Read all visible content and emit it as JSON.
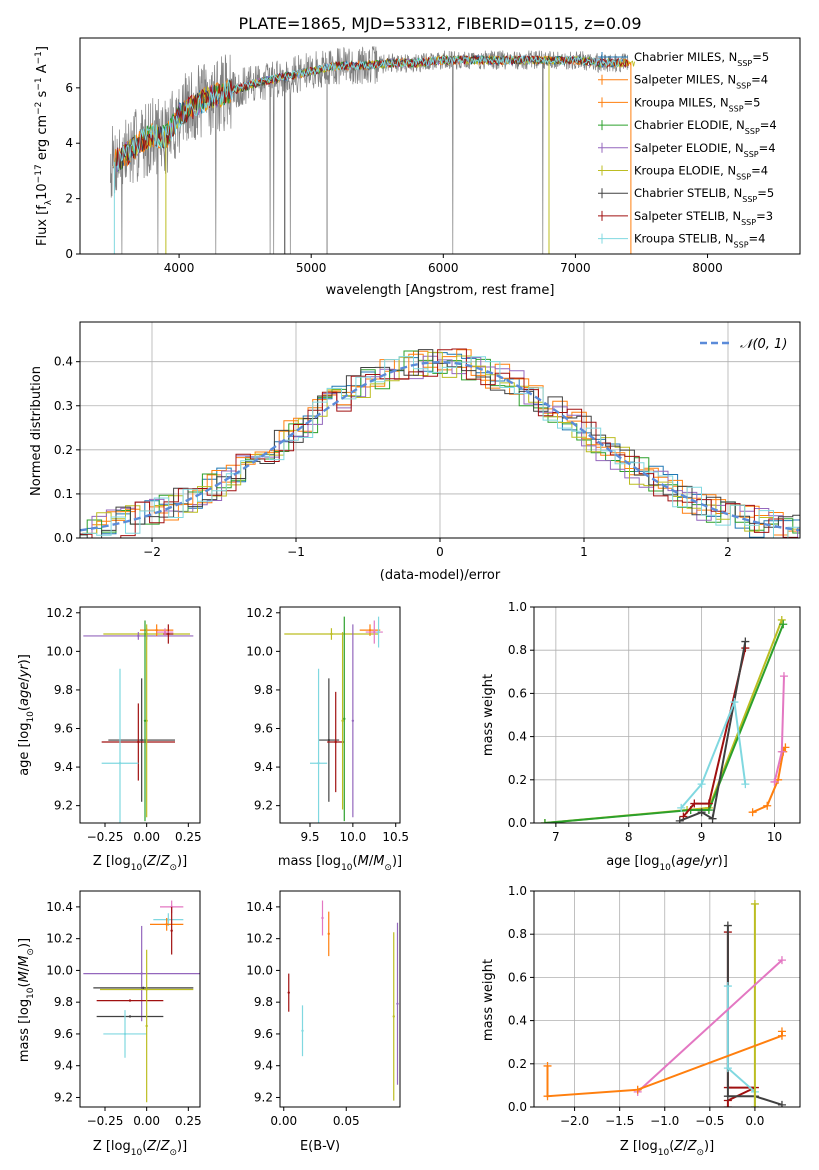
{
  "figure_title": "PLATE=1865, MJD=53312, FIBERID=0115, z=0.09",
  "model_colors": {
    "Chabrier MILES": "#1f77b4",
    "Salpeter MILES": "#ff7f0e",
    "Kroupa MILES": "#ff7f0e",
    "Chabrier ELODIE": "#2ca02c",
    "Salpeter ELODIE": "#9467bd",
    "Kroupa ELODIE": "#bcbd22",
    "Chabrier STELIB": "#404040",
    "Salpeter STELIB": "#a01010",
    "Kroupa STELIB": "#80d8e0",
    "pink": "#e377c2",
    "data": "#808080"
  },
  "chart_data": [
    {
      "id": "spectrum",
      "type": "line",
      "xlabel": "wavelength [Angstrom, rest frame]",
      "ylabel": "Flux [f_λ 10^-17 erg cm^-2 s^-1 A^-1]",
      "xlim": [
        3250,
        8700
      ],
      "ylim": [
        0,
        7.8
      ],
      "xticks": [
        4000,
        5000,
        6000,
        7000,
        8000
      ],
      "yticks": [
        0,
        2,
        4,
        6
      ],
      "legend_position": "top-right",
      "legend": [
        {
          "name": "Chabrier MILES",
          "nssp": "5"
        },
        {
          "name": "Salpeter MILES",
          "nssp": "4"
        },
        {
          "name": "Kroupa MILES",
          "nssp": "5"
        },
        {
          "name": "Chabrier ELODIE",
          "nssp": "4"
        },
        {
          "name": "Salpeter ELODIE",
          "nssp": "4"
        },
        {
          "name": "Kroupa ELODIE",
          "nssp": "4"
        },
        {
          "name": "Chabrier STELIB",
          "nssp": "5"
        },
        {
          "name": "Salpeter STELIB",
          "nssp": "3"
        },
        {
          "name": "Kroupa STELIB",
          "nssp": "4"
        }
      ],
      "continuum_x": [
        3500,
        3600,
        3700,
        3800,
        3900,
        4000,
        4200,
        4400,
        4600,
        4800,
        5000,
        5200,
        5400,
        5600,
        5800,
        6000,
        6200,
        6400,
        6600,
        6800,
        7000,
        7200,
        7400
      ],
      "continuum_y": [
        3.3,
        3.6,
        4.0,
        4.3,
        4.2,
        5.0,
        5.6,
        5.9,
        6.2,
        6.4,
        6.6,
        6.8,
        6.8,
        6.9,
        6.9,
        7.0,
        7.0,
        7.0,
        7.0,
        7.0,
        7.0,
        6.9,
        6.9
      ]
    },
    {
      "id": "residuals",
      "type": "line",
      "xlabel": "(data-model)/error",
      "ylabel": "Normed distribution",
      "xlim": [
        -2.5,
        2.5
      ],
      "ylim": [
        0,
        0.49
      ],
      "xticks": [
        -2,
        -1,
        0,
        1,
        2
      ],
      "yticks": [
        0.0,
        0.1,
        0.2,
        0.3,
        0.4
      ],
      "legend_position": "top-right",
      "legend_label": "N(0,1)",
      "grid": true,
      "gaussian": {
        "mu": 0,
        "sigma": 1
      }
    },
    {
      "id": "z_age",
      "type": "scatter",
      "xlabel": "Z [log10(Z/Z⊙)]",
      "ylabel": "age [log10(age/yr)]",
      "xlim": [
        -0.4,
        0.32
      ],
      "ylim": [
        9.11,
        10.23
      ],
      "xticks": [
        -0.25,
        0.0,
        0.25
      ],
      "yticks": [
        9.2,
        9.4,
        9.6,
        9.8,
        10.0,
        10.2
      ],
      "points": [
        {
          "x": 0.0,
          "y": 10.09,
          "xerr": 0.26,
          "yerr": 0.03,
          "color": "Kroupa ELODIE"
        },
        {
          "x": -0.05,
          "y": 10.08,
          "xerr": 0.33,
          "yerr": 0.02,
          "color": "Salpeter ELODIE"
        },
        {
          "x": 0.06,
          "y": 10.11,
          "xerr": 0.1,
          "yerr": 0.03,
          "color": "Salpeter MILES"
        },
        {
          "x": 0.13,
          "y": 10.09,
          "xerr": 0.03,
          "yerr": 0.05,
          "color": "Salpeter STELIB"
        },
        {
          "x": 0.11,
          "y": 10.1,
          "xerr": 0.05,
          "yerr": 0.02,
          "color": "pink"
        },
        {
          "x": -0.03,
          "y": 9.54,
          "xerr": 0.2,
          "yerr": 0.32,
          "color": "Chabrier STELIB"
        },
        {
          "x": -0.05,
          "y": 9.53,
          "xerr": 0.22,
          "yerr": 0.2,
          "color": "Salpeter STELIB"
        },
        {
          "x": -0.16,
          "y": 9.42,
          "xerr": 0.11,
          "yerr": 0.49,
          "color": "Kroupa STELIB"
        },
        {
          "x": 0.0,
          "y": 9.64,
          "xerr": 0.0,
          "yerr": 0.5,
          "color": "Kroupa ELODIE"
        },
        {
          "x": -0.01,
          "y": 9.64,
          "xerr": 0.0,
          "yerr": 0.52,
          "color": "Chabrier ELODIE"
        }
      ]
    },
    {
      "id": "mass_age",
      "type": "scatter",
      "xlabel": "mass [log10(M/M⊙)]",
      "ylabel": "",
      "xlim": [
        9.15,
        10.55
      ],
      "ylim": [
        9.11,
        10.23
      ],
      "xticks": [
        9.5,
        10.0,
        10.5
      ],
      "yticks": [
        9.2,
        9.4,
        9.6,
        9.8,
        10.0,
        10.2
      ],
      "points": [
        {
          "x": 9.75,
          "y": 10.09,
          "xerr": 0.55,
          "yerr": 0.03,
          "color": "Kroupa ELODIE"
        },
        {
          "x": 10.2,
          "y": 10.11,
          "xerr": 0.12,
          "yerr": 0.03,
          "color": "Salpeter MILES"
        },
        {
          "x": 10.25,
          "y": 10.1,
          "xerr": 0.1,
          "yerr": 0.06,
          "color": "pink"
        },
        {
          "x": 10.3,
          "y": 10.1,
          "xerr": 0.02,
          "yerr": 0.08,
          "color": "Kroupa STELIB"
        },
        {
          "x": 9.72,
          "y": 9.54,
          "xerr": 0.12,
          "yerr": 0.32,
          "color": "Chabrier STELIB"
        },
        {
          "x": 9.8,
          "y": 9.53,
          "xerr": 0.1,
          "yerr": 0.26,
          "color": "Salpeter STELIB"
        },
        {
          "x": 9.6,
          "y": 9.42,
          "xerr": 0.1,
          "yerr": 0.49,
          "color": "Kroupa STELIB"
        },
        {
          "x": 9.9,
          "y": 9.65,
          "xerr": 0.0,
          "yerr": 0.53,
          "color": "Chabrier ELODIE"
        },
        {
          "x": 10.0,
          "y": 9.64,
          "xerr": 0.0,
          "yerr": 0.5,
          "color": "Salpeter ELODIE"
        },
        {
          "x": 9.88,
          "y": 9.64,
          "xerr": 0.0,
          "yerr": 0.46,
          "color": "Kroupa ELODIE"
        }
      ]
    },
    {
      "id": "age_weight",
      "type": "line",
      "xlabel": "age [log10(age/yr)]",
      "ylabel": "mass weight",
      "xlim": [
        6.7,
        10.35
      ],
      "ylim": [
        0,
        1.0
      ],
      "xticks": [
        7,
        8,
        9,
        10
      ],
      "yticks": [
        0.0,
        0.2,
        0.4,
        0.6,
        0.8,
        1.0
      ],
      "grid": true,
      "series": [
        {
          "color": "Kroupa ELODIE",
          "x": [
            6.85,
            8.8,
            9.1,
            10.1
          ],
          "y": [
            0.0,
            0.06,
            0.07,
            0.94
          ]
        },
        {
          "color": "Chabrier ELODIE",
          "x": [
            6.85,
            8.85,
            9.1,
            10.12
          ],
          "y": [
            0.0,
            0.06,
            0.06,
            0.92
          ]
        },
        {
          "color": "Salpeter STELIB",
          "x": [
            8.75,
            8.9,
            9.1,
            9.6
          ],
          "y": [
            0.03,
            0.09,
            0.09,
            0.81
          ]
        },
        {
          "color": "Chabrier STELIB",
          "x": [
            8.7,
            9.0,
            9.15,
            9.6
          ],
          "y": [
            0.01,
            0.05,
            0.02,
            0.84
          ]
        },
        {
          "color": "Kroupa STELIB",
          "x": [
            8.72,
            9.0,
            9.45,
            9.6
          ],
          "y": [
            0.07,
            0.18,
            0.56,
            0.18
          ]
        },
        {
          "color": "Salpeter MILES",
          "x": [
            9.7,
            9.9,
            10.05,
            10.12,
            10.15
          ],
          "y": [
            0.05,
            0.08,
            0.2,
            0.33,
            0.35
          ]
        },
        {
          "color": "pink",
          "x": [
            10.0,
            10.1,
            10.13
          ],
          "y": [
            0.19,
            0.33,
            0.68
          ]
        }
      ]
    },
    {
      "id": "z_mass",
      "type": "scatter",
      "xlabel": "Z [log10(Z/Z⊙)]",
      "ylabel": "mass [log10(M/M⊙)]",
      "xlim": [
        -0.4,
        0.32
      ],
      "ylim": [
        9.14,
        10.5
      ],
      "xticks": [
        -0.25,
        0.0,
        0.25
      ],
      "yticks": [
        9.2,
        9.4,
        9.6,
        9.8,
        10.0,
        10.2,
        10.4
      ],
      "points": [
        {
          "x": -0.03,
          "y": 9.98,
          "xerr": 0.35,
          "yerr": 0.3,
          "color": "Salpeter ELODIE"
        },
        {
          "x": 0.0,
          "y": 9.88,
          "xerr": 0.28,
          "yerr": 0.0,
          "color": "Kroupa ELODIE"
        },
        {
          "x": -0.02,
          "y": 9.89,
          "xerr": 0.3,
          "yerr": 0.0,
          "color": "Chabrier STELIB"
        },
        {
          "x": -0.1,
          "y": 9.81,
          "xerr": 0.2,
          "yerr": 0.0,
          "color": "Salpeter STELIB"
        },
        {
          "x": -0.1,
          "y": 9.71,
          "xerr": 0.2,
          "yerr": 0.0,
          "color": "Chabrier STELIB"
        },
        {
          "x": -0.13,
          "y": 9.6,
          "xerr": 0.13,
          "yerr": 0.15,
          "color": "Kroupa STELIB"
        },
        {
          "x": 0.0,
          "y": 9.65,
          "xerr": 0.0,
          "yerr": 0.48,
          "color": "Kroupa ELODIE"
        },
        {
          "x": 0.15,
          "y": 10.4,
          "xerr": 0.07,
          "yerr": 0.04,
          "color": "pink"
        },
        {
          "x": 0.13,
          "y": 10.32,
          "xerr": 0.09,
          "yerr": 0.04,
          "color": "Kroupa STELIB"
        },
        {
          "x": 0.12,
          "y": 10.29,
          "xerr": 0.1,
          "yerr": 0.04,
          "color": "Salpeter MILES"
        },
        {
          "x": 0.15,
          "y": 10.25,
          "xerr": 0.0,
          "yerr": 0.15,
          "color": "Salpeter STELIB"
        }
      ]
    },
    {
      "id": "ebv_mass",
      "type": "scatter",
      "xlabel": "E(B-V)",
      "ylabel": "",
      "xlim": [
        -0.003,
        0.093
      ],
      "ylim": [
        9.14,
        10.5
      ],
      "xticks": [
        0.0,
        0.05
      ],
      "yticks": [
        9.2,
        9.4,
        9.6,
        9.8,
        10.0,
        10.2,
        10.4
      ],
      "points": [
        {
          "x": 0.031,
          "y": 10.33,
          "xerr": 0.0,
          "yerr": 0.11,
          "color": "pink"
        },
        {
          "x": 0.036,
          "y": 10.23,
          "xerr": 0.0,
          "yerr": 0.14,
          "color": "Salpeter MILES"
        },
        {
          "x": 0.004,
          "y": 9.86,
          "xerr": 0.0,
          "yerr": 0.12,
          "color": "Salpeter STELIB"
        },
        {
          "x": 0.015,
          "y": 9.62,
          "xerr": 0.0,
          "yerr": 0.16,
          "color": "Kroupa STELIB"
        },
        {
          "x": 0.088,
          "y": 9.71,
          "xerr": 0.0,
          "yerr": 0.53,
          "color": "Kroupa ELODIE"
        },
        {
          "x": 0.091,
          "y": 9.79,
          "xerr": 0.0,
          "yerr": 0.51,
          "color": "Salpeter ELODIE"
        }
      ]
    },
    {
      "id": "z_weight",
      "type": "line",
      "xlabel": "Z [log10(Z/Z⊙)]",
      "ylabel": "mass weight",
      "xlim": [
        -2.45,
        0.5
      ],
      "ylim": [
        0,
        1.0
      ],
      "xticks": [
        -2.0,
        -1.5,
        -1.0,
        -0.5,
        0.0
      ],
      "yticks": [
        0.0,
        0.2,
        0.4,
        0.6,
        0.8,
        1.0
      ],
      "grid": true,
      "series": [
        {
          "color": "Salpeter STELIB",
          "x": [
            -0.3,
            -0.3,
            0.0,
            -0.3,
            -0.3
          ],
          "y": [
            0.81,
            0.09,
            0.09,
            0.03,
            0.0
          ]
        },
        {
          "color": "Chabrier STELIB",
          "x": [
            -0.3,
            -0.3,
            0.0,
            0.3
          ],
          "y": [
            0.84,
            0.05,
            0.05,
            0.01
          ]
        },
        {
          "color": "Kroupa STELIB",
          "x": [
            -0.3,
            -0.3,
            0.0,
            0.0
          ],
          "y": [
            0.56,
            0.18,
            0.07,
            0.0
          ]
        },
        {
          "color": "Kroupa ELODIE",
          "x": [
            0.0,
            0.0
          ],
          "y": [
            0.94,
            0.0
          ]
        },
        {
          "color": "pink",
          "x": [
            -1.3,
            0.3
          ],
          "y": [
            0.07,
            0.68
          ]
        },
        {
          "color": "Salpeter MILES",
          "x": [
            -2.3,
            -2.3,
            -1.3,
            0.3,
            0.3
          ],
          "y": [
            0.19,
            0.05,
            0.08,
            0.33,
            0.35
          ]
        }
      ]
    }
  ]
}
